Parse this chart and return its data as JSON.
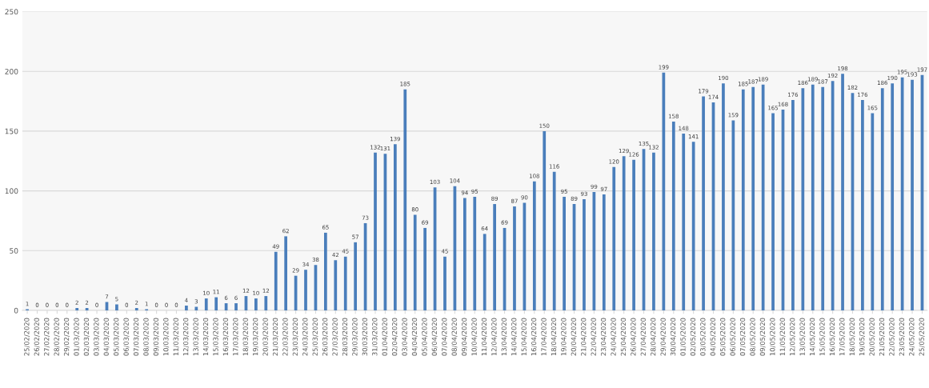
{
  "chart_data": {
    "type": "bar",
    "categories": [
      "25/02/2020",
      "26/02/2020",
      "27/02/2020",
      "28/02/2020",
      "29/02/2020",
      "01/03/2020",
      "02/03/2020",
      "03/03/2020",
      "04/03/2020",
      "05/03/2020",
      "06/03/2020",
      "07/03/2020",
      "08/03/2020",
      "09/03/2020",
      "10/03/2020",
      "11/03/2020",
      "12/03/2020",
      "13/03/2020",
      "14/03/2020",
      "15/03/2020",
      "16/03/2020",
      "17/03/2020",
      "18/03/2020",
      "19/03/2020",
      "20/03/2020",
      "21/03/2020",
      "22/03/2020",
      "23/03/2020",
      "24/03/2020",
      "25/03/2020",
      "26/03/2020",
      "27/03/2020",
      "28/03/2020",
      "29/03/2020",
      "30/03/2020",
      "31/03/2020",
      "01/04/2020",
      "02/04/2020",
      "03/04/2020",
      "04/04/2020",
      "05/04/2020",
      "06/04/2020",
      "07/04/2020",
      "08/04/2020",
      "09/04/2020",
      "10/04/2020",
      "11/04/2020",
      "12/04/2020",
      "13/04/2020",
      "14/04/2020",
      "15/04/2020",
      "16/04/2020",
      "17/04/2020",
      "18/04/2020",
      "19/04/2020",
      "20/04/2020",
      "21/04/2020",
      "22/04/2020",
      "23/04/2020",
      "24/04/2020",
      "25/04/2020",
      "26/04/2020",
      "27/04/2020",
      "28/04/2020",
      "29/04/2020",
      "30/04/2020",
      "01/05/2020",
      "02/05/2020",
      "03/05/2020",
      "04/05/2020",
      "05/05/2020",
      "06/05/2020",
      "07/05/2020",
      "08/05/2020",
      "09/05/2020",
      "10/05/2020",
      "11/05/2020",
      "12/05/2020",
      "13/05/2020",
      "14/05/2020",
      "15/05/2020",
      "16/05/2020",
      "17/05/2020",
      "18/05/2020",
      "19/05/2020",
      "20/05/2020",
      "21/05/2020",
      "22/05/2020",
      "23/05/2020",
      "24/05/2020",
      "25/05/2020"
    ],
    "values": [
      1,
      0,
      0,
      0,
      0,
      2,
      2,
      0,
      7,
      5,
      0,
      2,
      1,
      0,
      0,
      0,
      4,
      3,
      10,
      11,
      6,
      6,
      12,
      10,
      12,
      49,
      62,
      29,
      34,
      38,
      65,
      42,
      45,
      57,
      73,
      132,
      131,
      139,
      185,
      80,
      69,
      103,
      45,
      104,
      94,
      95,
      64,
      89,
      69,
      87,
      90,
      108,
      150,
      116,
      95,
      89,
      93,
      99,
      97,
      120,
      129,
      126,
      135,
      132,
      199,
      158,
      148,
      141,
      179,
      174,
      190,
      159,
      185,
      187,
      189,
      165,
      168,
      176,
      186,
      189,
      187,
      192,
      198,
      182,
      176,
      165,
      186,
      190,
      195,
      193,
      197
    ],
    "color": "#4a7ebb",
    "ylim": [
      0,
      250
    ],
    "yticks": [
      0,
      50,
      100,
      150,
      200,
      250
    ],
    "grid": "y",
    "data_labels": true,
    "legend": false
  }
}
